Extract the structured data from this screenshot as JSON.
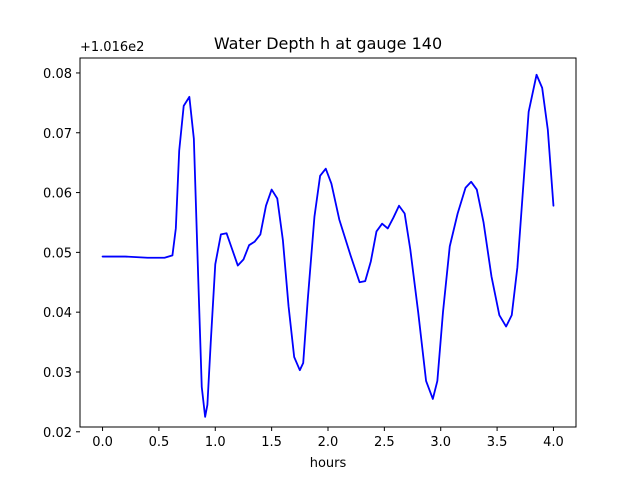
{
  "chart_data": {
    "type": "line",
    "title": "Water Depth h at gauge 140",
    "xlabel": "hours",
    "ylabel": "",
    "y_offset_label": "+1.016e2",
    "xlim": [
      -0.2,
      4.2
    ],
    "ylim": [
      0.0208,
      0.0825
    ],
    "x_ticks": [
      0.0,
      0.5,
      1.0,
      1.5,
      2.0,
      2.5,
      3.0,
      3.5,
      4.0
    ],
    "x_tick_labels": [
      "0.0",
      "0.5",
      "1.0",
      "1.5",
      "2.0",
      "2.5",
      "3.0",
      "3.5",
      "4.0"
    ],
    "y_ticks": [
      0.02,
      0.03,
      0.04,
      0.05,
      0.06,
      0.07,
      0.08
    ],
    "y_tick_labels": [
      "0.02",
      "0.03",
      "0.04",
      "0.05",
      "0.06",
      "0.07",
      "0.08"
    ],
    "grid": false,
    "legend": "none",
    "series": [
      {
        "color": "#0000ff",
        "x": [
          0.0,
          0.2,
          0.4,
          0.55,
          0.62,
          0.65,
          0.68,
          0.72,
          0.77,
          0.81,
          0.85,
          0.88,
          0.91,
          0.93,
          0.96,
          1.0,
          1.05,
          1.1,
          1.15,
          1.2,
          1.25,
          1.3,
          1.35,
          1.4,
          1.45,
          1.5,
          1.55,
          1.6,
          1.65,
          1.7,
          1.75,
          1.78,
          1.82,
          1.88,
          1.93,
          1.98,
          2.03,
          2.1,
          2.2,
          2.28,
          2.33,
          2.38,
          2.43,
          2.48,
          2.53,
          2.58,
          2.63,
          2.68,
          2.73,
          2.8,
          2.87,
          2.93,
          2.97,
          3.02,
          3.08,
          3.15,
          3.22,
          3.27,
          3.32,
          3.38,
          3.45,
          3.52,
          3.58,
          3.63,
          3.68,
          3.73,
          3.78,
          3.85,
          3.9,
          3.95,
          4.0
        ],
        "y": [
          0.0493,
          0.0493,
          0.0491,
          0.0491,
          0.0495,
          0.054,
          0.067,
          0.0745,
          0.076,
          0.069,
          0.045,
          0.0275,
          0.0225,
          0.0245,
          0.035,
          0.048,
          0.053,
          0.0532,
          0.0505,
          0.0478,
          0.0488,
          0.0512,
          0.0518,
          0.053,
          0.0578,
          0.0605,
          0.059,
          0.052,
          0.041,
          0.0325,
          0.0303,
          0.0315,
          0.042,
          0.056,
          0.0628,
          0.064,
          0.0615,
          0.0555,
          0.0495,
          0.045,
          0.0452,
          0.0485,
          0.0535,
          0.0548,
          0.054,
          0.0558,
          0.0578,
          0.0565,
          0.0505,
          0.04,
          0.0285,
          0.0255,
          0.0285,
          0.04,
          0.051,
          0.0565,
          0.0608,
          0.0618,
          0.0605,
          0.055,
          0.046,
          0.0395,
          0.0376,
          0.0395,
          0.0475,
          0.0605,
          0.0735,
          0.0797,
          0.0775,
          0.0705,
          0.0578
        ]
      }
    ]
  }
}
